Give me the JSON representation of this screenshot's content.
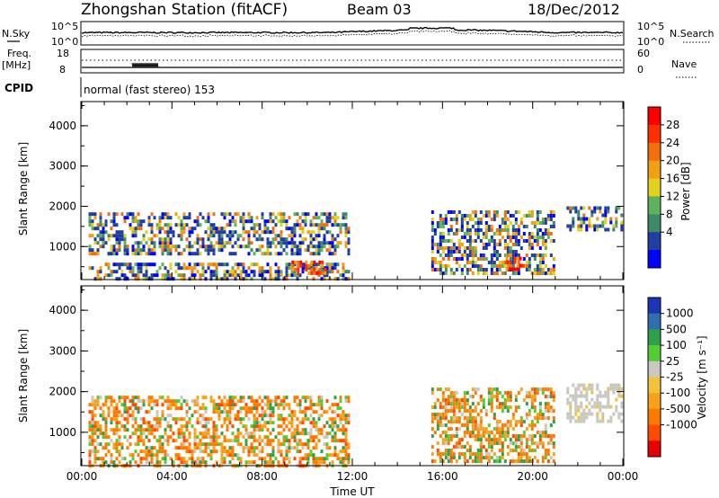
{
  "header": {
    "station": "Zhongshan Station (fitACF)",
    "beam": "Beam 03",
    "date": "18/Dec/2012"
  },
  "top_panels": {
    "nsky_label": "N.Sky",
    "nsky_ticks": [
      "10^5",
      "10^0"
    ],
    "nsearch_label": "N.Search",
    "nsearch_ticks": [
      "10^5",
      "10^0"
    ],
    "freq_label": "Freq.",
    "freq_unit": "[MHz]",
    "freq_ticks": [
      "18",
      "8"
    ],
    "nave_label": "Nave",
    "nave_ticks": [
      "60",
      "0"
    ],
    "cpid_label": "CPID",
    "cpid_text": "normal (fast stereo) 153"
  },
  "colors": {
    "power": [
      "#0000ff",
      "#203fa0",
      "#3d8a6a",
      "#5fb25b",
      "#e2d11f",
      "#f0a014",
      "#f07010",
      "#ff3000",
      "#ff0000"
    ],
    "velocity": [
      "#e80000",
      "#ff4a00",
      "#ff7a00",
      "#f7a21a",
      "#f2c23a",
      "#c8c8c0",
      "#55cc33",
      "#2fa04a",
      "#2f6fb0",
      "#1c35b5"
    ]
  },
  "chart_data": [
    {
      "type": "heatmap",
      "name": "power",
      "xlabel": "",
      "ylabel": "Slant Range [km]",
      "x_range_hours": [
        0,
        24
      ],
      "ylim_km": [
        180,
        4600
      ],
      "y_ticks": [
        "4000",
        "3000",
        "2000",
        "1000"
      ],
      "y_tick_values": [
        4000,
        3000,
        2000,
        1000
      ],
      "colorbar": {
        "label": "Power [dB]",
        "tick_labels": [
          "28",
          "24",
          "20",
          "16",
          "12",
          "8",
          "4"
        ],
        "range": [
          0,
          30
        ]
      },
      "echo_regions": [
        {
          "t": [
            0.3,
            11.8
          ],
          "r": [
            850,
            1850
          ],
          "level": "medium"
        },
        {
          "t": [
            0.3,
            11.8
          ],
          "r": [
            200,
            600
          ],
          "level": "medium"
        },
        {
          "t": [
            9.3,
            10.8
          ],
          "r": [
            300,
            650
          ],
          "level": "high"
        },
        {
          "t": [
            15.5,
            21.0
          ],
          "r": [
            300,
            1900
          ],
          "level": "medium"
        },
        {
          "t": [
            18.8,
            19.6
          ],
          "r": [
            450,
            750
          ],
          "level": "high"
        },
        {
          "t": [
            21.5,
            24.0
          ],
          "r": [
            1400,
            2000
          ],
          "level": "medium"
        }
      ]
    },
    {
      "type": "heatmap",
      "name": "velocity",
      "xlabel": "Time UT",
      "ylabel": "Slant Range [km]",
      "x_ticks": [
        "00:00",
        "04:00",
        "08:00",
        "12:00",
        "16:00",
        "20:00",
        "00:00"
      ],
      "x_tick_values": [
        0,
        4,
        8,
        12,
        16,
        20,
        24
      ],
      "ylim_km": [
        180,
        4600
      ],
      "y_ticks": [
        "4000",
        "3000",
        "2000",
        "1000"
      ],
      "y_tick_values": [
        4000,
        3000,
        2000,
        1000
      ],
      "colorbar": {
        "label": "Velocity [m s⁻¹]",
        "tick_labels": [
          "1000",
          "500",
          "100",
          "25",
          "-25",
          "-100",
          "-500",
          "-1000"
        ]
      },
      "echo_regions": [
        {
          "t": [
            0.3,
            11.8
          ],
          "r": [
            200,
            1900
          ],
          "velocity": -300
        },
        {
          "t": [
            15.5,
            21.0
          ],
          "r": [
            300,
            2100
          ],
          "velocity": -200
        },
        {
          "t": [
            21.5,
            24.0
          ],
          "r": [
            1300,
            2200
          ],
          "velocity": 0
        }
      ]
    }
  ]
}
